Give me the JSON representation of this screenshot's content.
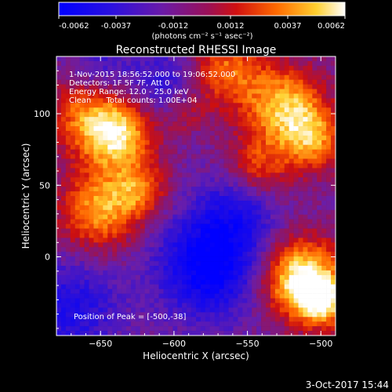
{
  "colorbar": {
    "tick_labels": [
      "-0.0062",
      "-0.0037",
      "-0.0012",
      "0.0012",
      "0.0037",
      "0.0062"
    ],
    "units_label": "(photons cm⁻² s⁻¹ asec⁻²)"
  },
  "image": {
    "title": "Reconstructed RHESSI Image",
    "info_lines": [
      "1-Nov-2015 18:56:52.000 to 19:06:52.000",
      "Detectors: 1F 5F 7F, Att 0",
      "Energy Range: 12.0 - 25.0 keV",
      "Clean      Total counts: 1.00E+04"
    ],
    "peak_label": "Position of Peak = [-500,-38]"
  },
  "x_axis": {
    "label": "Heliocentric X (arcsec)",
    "range": [
      -680,
      -490
    ],
    "ticks": [
      -650,
      -600,
      -550,
      -500
    ]
  },
  "y_axis": {
    "label": "Heliocentric Y (arcsec)",
    "range": [
      -55,
      140
    ],
    "ticks": [
      0,
      50,
      100
    ]
  },
  "footer": {
    "timestamp": "3-Oct-2017 15:44"
  },
  "colormap": {
    "scheme": "blue-purple-red-yellow-white",
    "stops": [
      "#0000ff",
      "#7a1fa8",
      "#cc0000",
      "#ff7700",
      "#ffee44",
      "#ffffff"
    ]
  }
}
